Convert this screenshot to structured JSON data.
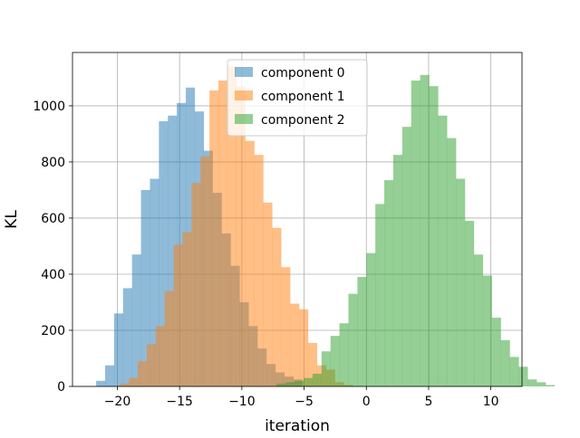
{
  "chart_data": {
    "type": "bar",
    "subtype": "histogram",
    "title": "",
    "xlabel": "iteration",
    "ylabel": "KL",
    "xlim": [
      -23.6,
      12.5
    ],
    "ylim": [
      0,
      1190
    ],
    "xticks": [
      -20,
      -15,
      -10,
      -5,
      0,
      5,
      10
    ],
    "xtick_labels": [
      "−20",
      "−15",
      "−10",
      "−5",
      "0",
      "5",
      "10"
    ],
    "yticks": [
      0,
      200,
      400,
      600,
      800,
      1000
    ],
    "ytick_labels": [
      "0",
      "200",
      "400",
      "600",
      "800",
      "1000"
    ],
    "grid": true,
    "legend_position": "top-center",
    "alpha": 0.5,
    "series": [
      {
        "name": "component 0",
        "color": "#1f77b4",
        "bin_start": -21.7,
        "bin_width": 0.72,
        "values": [
          20,
          75,
          260,
          350,
          470,
          700,
          740,
          945,
          965,
          1010,
          1065,
          980,
          840,
          690,
          545,
          430,
          300,
          215,
          135,
          80,
          50,
          35,
          25
        ]
      },
      {
        "name": "component 1",
        "color": "#ff7f0e",
        "bin_start": -19.8,
        "bin_width": 0.72,
        "values": [
          10,
          30,
          90,
          150,
          215,
          340,
          505,
          550,
          725,
          820,
          1055,
          1090,
          1140,
          1070,
          875,
          825,
          655,
          565,
          425,
          295,
          275,
          155,
          75,
          60,
          15,
          5
        ]
      },
      {
        "name": "component 2",
        "color": "#2ca02c",
        "bin_start": -7.2,
        "bin_width": 0.72,
        "values": [
          10,
          15,
          20,
          30,
          45,
          125,
          180,
          225,
          330,
          390,
          475,
          650,
          735,
          825,
          925,
          1090,
          1110,
          1070,
          965,
          885,
          740,
          590,
          470,
          395,
          245,
          165,
          105,
          70,
          25,
          15,
          5
        ]
      }
    ]
  }
}
